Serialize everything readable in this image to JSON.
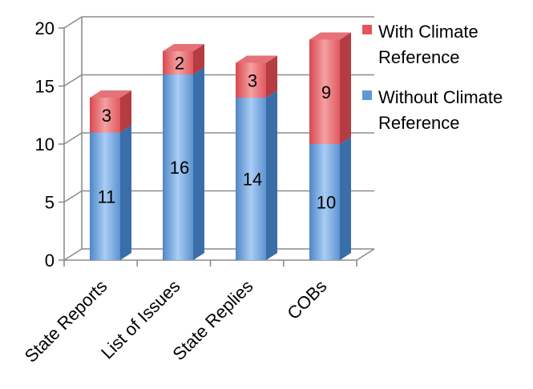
{
  "chart_data": {
    "type": "bar",
    "stacked": true,
    "three_d": true,
    "categories": [
      "State Reports",
      "List of Issues",
      "State Replies",
      "COBs"
    ],
    "series": [
      {
        "name": "Without Climate Reference",
        "values": [
          11,
          16,
          14,
          10
        ],
        "color": "#5b9bd5"
      },
      {
        "name": "With Climate Reference",
        "values": [
          3,
          2,
          3,
          9
        ],
        "color": "#e8525a"
      }
    ],
    "ylim": [
      0,
      20
    ],
    "y_ticks": [
      0,
      5,
      10,
      15,
      20
    ],
    "grid": true,
    "legend_position": "right",
    "legend": [
      {
        "series": 1,
        "lines": [
          "With Climate",
          "Reference"
        ]
      },
      {
        "series": 0,
        "lines": [
          "Without Climate",
          "Reference"
        ]
      }
    ]
  }
}
